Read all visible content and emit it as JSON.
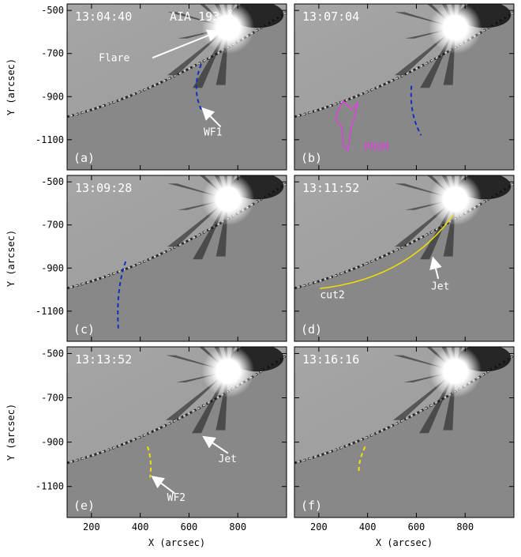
{
  "panels": [
    {
      "id": "a",
      "timestamp": "13:04:40",
      "instrument": "AIA 193 Å",
      "label": "(a)",
      "notes": [
        {
          "text": "Flare"
        },
        {
          "text": "WF1"
        }
      ]
    },
    {
      "id": "b",
      "timestamp": "13:07:04",
      "label": "(b)",
      "notes": [
        {
          "text": "PROM"
        }
      ]
    },
    {
      "id": "c",
      "timestamp": "13:09:28",
      "label": "(c)",
      "notes": []
    },
    {
      "id": "d",
      "timestamp": "13:11:52",
      "label": "(d)",
      "notes": [
        {
          "text": "cut2"
        },
        {
          "text": "Jet"
        }
      ]
    },
    {
      "id": "e",
      "timestamp": "13:13:52",
      "label": "(e)",
      "notes": [
        {
          "text": "Jet"
        },
        {
          "text": "WF2"
        }
      ]
    },
    {
      "id": "f",
      "timestamp": "13:16:16",
      "label": "(f)",
      "notes": []
    }
  ],
  "axes": {
    "x_title": "X (arcsec)",
    "y_title": "Y (arcsec)",
    "x_ticks": [
      "200",
      "400",
      "600",
      "800"
    ],
    "y_ticks": [
      "-500",
      "-700",
      "-900",
      "-1100"
    ]
  },
  "colors": {
    "background": "#888888",
    "wavefront": "#1030c0",
    "wavefront2": "#f0e000",
    "prominence": "#e040e0",
    "cut": "#f0e000"
  }
}
